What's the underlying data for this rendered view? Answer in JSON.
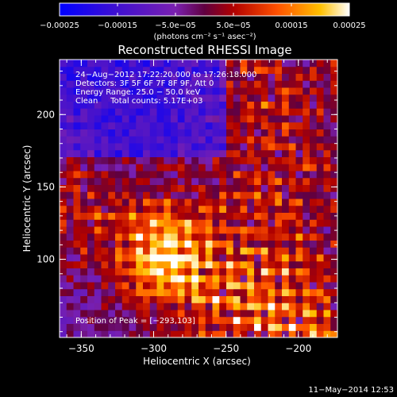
{
  "chart_data": {
    "type": "heatmap",
    "title": "Reconstructed RHESSI Image",
    "xlabel": "Heliocentric X (arcsec)",
    "ylabel": "Heliocentric Y (arcsec)",
    "xlim": [
      -365,
      -173
    ],
    "ylim": [
      46,
      238
    ],
    "x_ticks": [
      -350,
      -300,
      -250,
      -200
    ],
    "x_tick_labels": [
      "−350",
      "−300",
      "−250",
      "−200"
    ],
    "y_ticks": [
      100,
      150,
      200
    ],
    "y_tick_labels": [
      "100",
      "150",
      "200"
    ],
    "colorbar": {
      "range": [
        -0.00025,
        0.00025
      ],
      "ticks": [
        -0.00025,
        -0.00015,
        -5e-05,
        5e-05,
        0.00015,
        0.00025
      ],
      "tick_labels": [
        "−0.00025",
        "−0.00015",
        "−5.0e−05",
        "5.0e−05",
        "0.00015",
        "0.00025"
      ],
      "unit": "(photons cm⁻² s⁻¹ asec⁻²)",
      "colors": [
        "#0000ff",
        "#5010c0",
        "#8020a0",
        "#c01000",
        "#ff6000",
        "#ffd000",
        "#ffffff"
      ]
    },
    "peak": [
      -293,
      103
    ],
    "grid": false,
    "legend": "none",
    "annotations": {
      "time": "24−Aug−2012 17:22:20.000 to 17:26:18.000",
      "detectors": "Detectors: 3F 5F 6F 7F 8F 9F, Att 0",
      "energy": "Energy Range: 25.0 − 50.0 keV",
      "clean": "Clean     Total counts: 5.17E+03",
      "peak_label": "Position of Peak = [−293,103]"
    }
  },
  "footer": {
    "date": "11−May−2014 12:53"
  }
}
